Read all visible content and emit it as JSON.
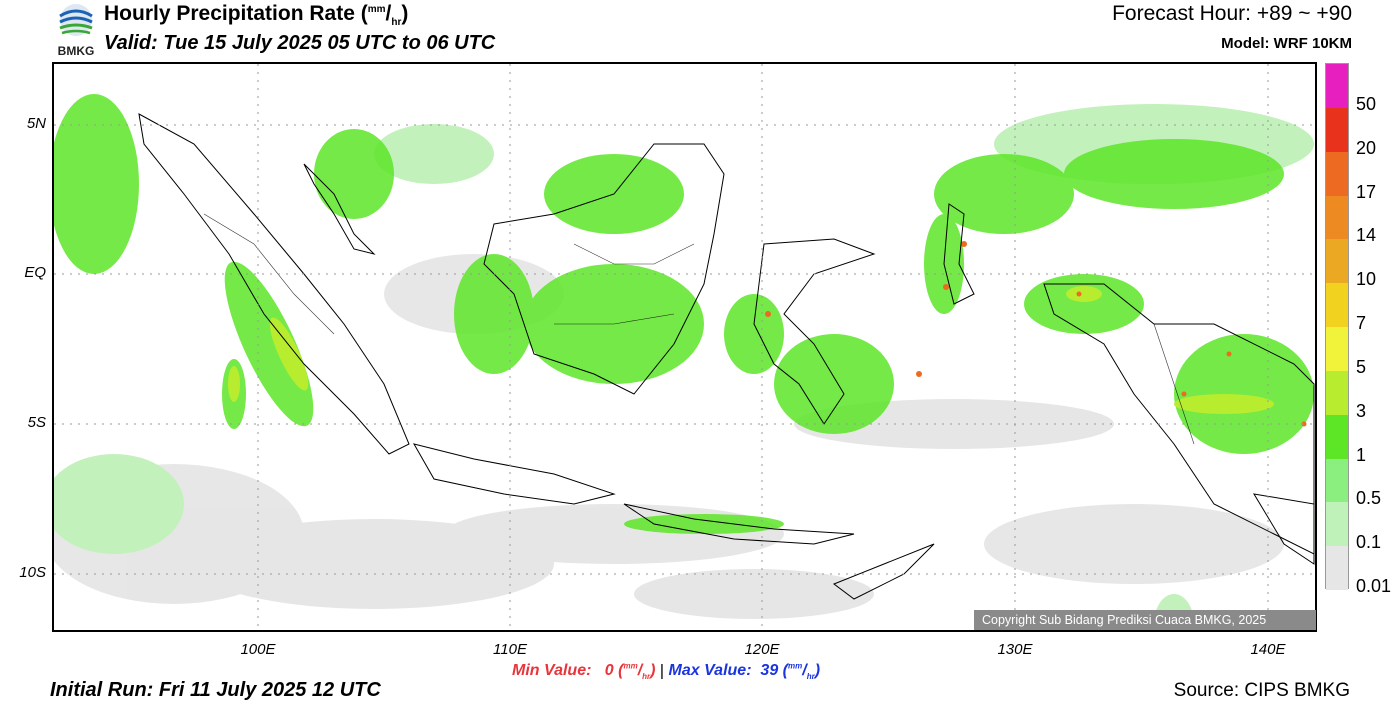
{
  "header": {
    "title_main": "Hourly Precipitation Rate (",
    "title_unit_sup": "mm",
    "title_unit_sub": "hr",
    "title_close": ")",
    "valid": "Valid: Tue 15 July 2025 05 UTC to 06 UTC",
    "forecast_hour": "Forecast Hour: +89 ~ +90",
    "model": "Model: WRF 10KM",
    "logo_text": "BMKG"
  },
  "map": {
    "lat_labels": [
      "5N",
      "EQ",
      "5S",
      "10S"
    ],
    "lon_labels": [
      "100E",
      "110E",
      "120E",
      "130E",
      "140E"
    ],
    "copyright": "Copyright Sub Bidang Prediksi Cuaca BMKG, 2025"
  },
  "colorbar": {
    "labels": [
      "50",
      "20",
      "17",
      "14",
      "10",
      "7",
      "5",
      "3",
      "1",
      "0.5",
      "0.1",
      "0.01"
    ],
    "colors": [
      "#e71fbf",
      "#e8321c",
      "#ec6a22",
      "#ee8a22",
      "#eba923",
      "#f0d21f",
      "#f1f23a",
      "#b7ed2e",
      "#5ce626",
      "#8aef7e",
      "#bff2b8",
      "#e6e6e6"
    ]
  },
  "footer": {
    "min_label": "Min Value:",
    "min_value": "0",
    "min_unit_open": "(",
    "min_unit_sup": "mm",
    "min_unit_sub": "hr",
    "min_unit_close": ")",
    "separator": "|",
    "max_label": "Max Value:",
    "max_value": "39",
    "max_unit_open": "(",
    "max_unit_sup": "mm",
    "max_unit_sub": "hr",
    "max_unit_close": ")",
    "initial_run": "Initial Run: Fri 11 July 2025 12 UTC",
    "source": "Source: CIPS BMKG"
  }
}
